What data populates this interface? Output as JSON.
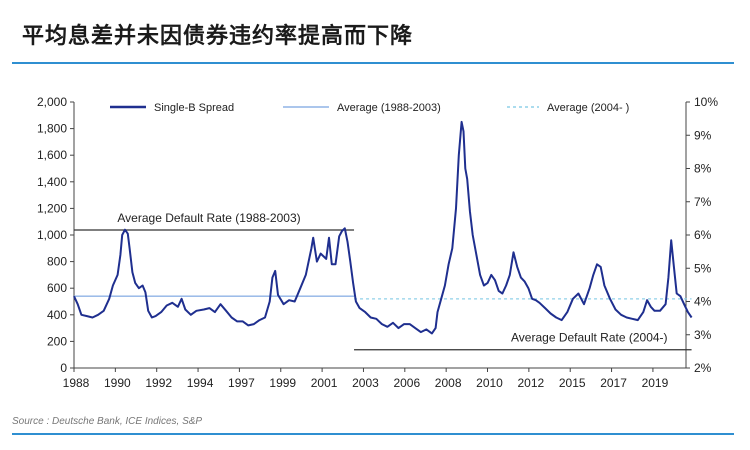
{
  "page": {
    "title": "平均息差并未因债券违约率提高而下降",
    "source": "Source : Deutsche Bank, ICE Indices, S&P"
  },
  "chart_data": {
    "type": "line",
    "legend": {
      "placement": "top",
      "entries": [
        "Single-B Spread",
        "Average (1988-2003)",
        "Average (2004- )"
      ]
    },
    "x_axis": {
      "range": [
        1988,
        2021
      ],
      "tick_labels": [
        "1988",
        "1990",
        "1992",
        "1994",
        "1997",
        "1999",
        "2001",
        "2003",
        "2006",
        "2008",
        "2010",
        "2012",
        "2015",
        "2017",
        "2019"
      ]
    },
    "y_left": {
      "range": [
        0,
        2000
      ],
      "tick_labels": [
        "0",
        "200",
        "400",
        "600",
        "800",
        "1,000",
        "1,200",
        "1,400",
        "1,600",
        "1,800",
        "2,000"
      ]
    },
    "y_right": {
      "range": [
        2,
        10
      ],
      "tick_labels": [
        "2%",
        "3%",
        "4%",
        "5%",
        "6%",
        "7%",
        "8%",
        "9%",
        "10%"
      ]
    },
    "series": [
      {
        "name": "Single-B Spread",
        "color": "#1f2f8f",
        "points": [
          [
            1988.0,
            540
          ],
          [
            1988.2,
            480
          ],
          [
            1988.4,
            400
          ],
          [
            1988.7,
            390
          ],
          [
            1989.0,
            380
          ],
          [
            1989.3,
            400
          ],
          [
            1989.6,
            430
          ],
          [
            1989.9,
            520
          ],
          [
            1990.1,
            620
          ],
          [
            1990.35,
            700
          ],
          [
            1990.5,
            850
          ],
          [
            1990.6,
            1000
          ],
          [
            1990.75,
            1040
          ],
          [
            1990.9,
            1010
          ],
          [
            1991.0,
            900
          ],
          [
            1991.15,
            720
          ],
          [
            1991.3,
            640
          ],
          [
            1991.5,
            600
          ],
          [
            1991.7,
            620
          ],
          [
            1991.85,
            570
          ],
          [
            1992.0,
            430
          ],
          [
            1992.2,
            380
          ],
          [
            1992.4,
            390
          ],
          [
            1992.7,
            420
          ],
          [
            1993.0,
            470
          ],
          [
            1993.3,
            490
          ],
          [
            1993.6,
            460
          ],
          [
            1993.8,
            520
          ],
          [
            1994.0,
            440
          ],
          [
            1994.3,
            400
          ],
          [
            1994.6,
            430
          ],
          [
            1995.0,
            440
          ],
          [
            1995.3,
            450
          ],
          [
            1995.6,
            420
          ],
          [
            1995.9,
            480
          ],
          [
            1996.2,
            430
          ],
          [
            1996.5,
            380
          ],
          [
            1996.8,
            350
          ],
          [
            1997.1,
            350
          ],
          [
            1997.4,
            320
          ],
          [
            1997.7,
            330
          ],
          [
            1998.0,
            360
          ],
          [
            1998.3,
            380
          ],
          [
            1998.55,
            500
          ],
          [
            1998.7,
            680
          ],
          [
            1998.85,
            730
          ],
          [
            1999.0,
            550
          ],
          [
            1999.3,
            480
          ],
          [
            1999.6,
            510
          ],
          [
            1999.9,
            500
          ],
          [
            2000.2,
            600
          ],
          [
            2000.5,
            700
          ],
          [
            2000.8,
            900
          ],
          [
            2000.9,
            980
          ],
          [
            2001.1,
            800
          ],
          [
            2001.3,
            860
          ],
          [
            2001.6,
            820
          ],
          [
            2001.75,
            980
          ],
          [
            2001.9,
            780
          ],
          [
            2002.1,
            780
          ],
          [
            2002.3,
            990
          ],
          [
            2002.45,
            1030
          ],
          [
            2002.6,
            1050
          ],
          [
            2002.75,
            950
          ],
          [
            2002.9,
            800
          ],
          [
            2003.05,
            640
          ],
          [
            2003.2,
            500
          ],
          [
            2003.4,
            450
          ],
          [
            2003.7,
            420
          ],
          [
            2004.0,
            380
          ],
          [
            2004.3,
            370
          ],
          [
            2004.6,
            330
          ],
          [
            2004.9,
            310
          ],
          [
            2005.2,
            340
          ],
          [
            2005.5,
            300
          ],
          [
            2005.8,
            330
          ],
          [
            2006.1,
            330
          ],
          [
            2006.4,
            300
          ],
          [
            2006.7,
            270
          ],
          [
            2007.0,
            290
          ],
          [
            2007.3,
            260
          ],
          [
            2007.5,
            300
          ],
          [
            2007.6,
            420
          ],
          [
            2007.8,
            520
          ],
          [
            2008.0,
            620
          ],
          [
            2008.2,
            780
          ],
          [
            2008.4,
            900
          ],
          [
            2008.6,
            1200
          ],
          [
            2008.75,
            1600
          ],
          [
            2008.9,
            1850
          ],
          [
            2009.0,
            1780
          ],
          [
            2009.1,
            1500
          ],
          [
            2009.2,
            1420
          ],
          [
            2009.35,
            1180
          ],
          [
            2009.5,
            1000
          ],
          [
            2009.7,
            850
          ],
          [
            2009.9,
            700
          ],
          [
            2010.1,
            620
          ],
          [
            2010.3,
            640
          ],
          [
            2010.5,
            700
          ],
          [
            2010.7,
            660
          ],
          [
            2010.9,
            580
          ],
          [
            2011.1,
            560
          ],
          [
            2011.3,
            620
          ],
          [
            2011.5,
            700
          ],
          [
            2011.7,
            870
          ],
          [
            2011.9,
            760
          ],
          [
            2012.1,
            680
          ],
          [
            2012.3,
            650
          ],
          [
            2012.5,
            600
          ],
          [
            2012.7,
            520
          ],
          [
            2012.9,
            510
          ],
          [
            2013.1,
            490
          ],
          [
            2013.4,
            450
          ],
          [
            2013.7,
            410
          ],
          [
            2014.0,
            380
          ],
          [
            2014.3,
            360
          ],
          [
            2014.6,
            420
          ],
          [
            2014.9,
            520
          ],
          [
            2015.2,
            560
          ],
          [
            2015.5,
            480
          ],
          [
            2015.8,
            600
          ],
          [
            2016.0,
            700
          ],
          [
            2016.2,
            780
          ],
          [
            2016.4,
            760
          ],
          [
            2016.6,
            620
          ],
          [
            2016.9,
            520
          ],
          [
            2017.2,
            440
          ],
          [
            2017.5,
            400
          ],
          [
            2017.8,
            380
          ],
          [
            2018.1,
            370
          ],
          [
            2018.4,
            360
          ],
          [
            2018.7,
            420
          ],
          [
            2018.9,
            510
          ],
          [
            2019.1,
            460
          ],
          [
            2019.3,
            430
          ],
          [
            2019.6,
            430
          ],
          [
            2019.9,
            480
          ],
          [
            2020.05,
            680
          ],
          [
            2020.2,
            960
          ],
          [
            2020.35,
            760
          ],
          [
            2020.5,
            560
          ],
          [
            2020.7,
            540
          ],
          [
            2020.9,
            480
          ],
          [
            2021.1,
            420
          ],
          [
            2021.3,
            380
          ]
        ]
      },
      {
        "name": "Average (1988-2003)",
        "color": "#8fb3e6",
        "range_x": [
          1988,
          2003.1
        ],
        "value_left": 540
      },
      {
        "name": "Average (2004- )",
        "color": "#8fd0e8",
        "style": "dashed",
        "range_x": [
          2003.1,
          2021.3
        ],
        "value_left": 520
      }
    ],
    "annotations": [
      {
        "text": "Average Default Rate (1988-2003)",
        "x_range": [
          1988,
          2003.1
        ],
        "value_right": 6.15
      },
      {
        "text": "Average Default Rate (2004-)",
        "x_range": [
          2003.1,
          2021.3
        ],
        "value_right": 2.55
      }
    ]
  }
}
